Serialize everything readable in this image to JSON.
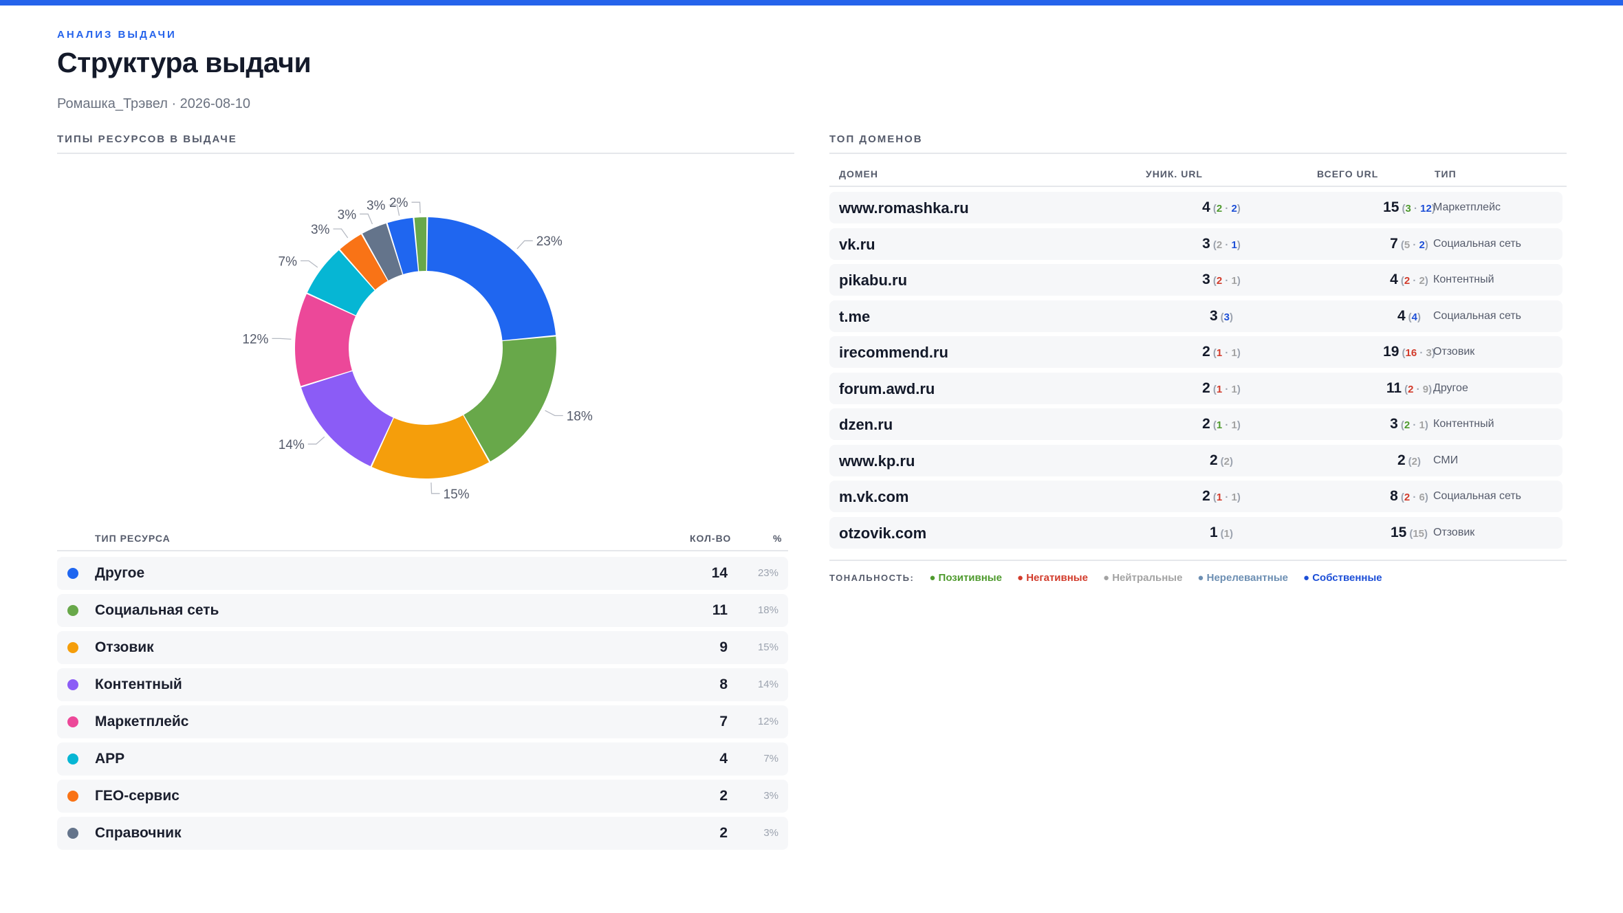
{
  "header": {
    "kicker": "АНАЛИЗ ВЫДАЧИ",
    "title": "Структура выдачи",
    "subtitle": "Ромашка_Трэвел · 2026-08-10"
  },
  "left_section": {
    "title": "ТИПЫ РЕСУРСОВ В ВЫДАЧЕ",
    "table_headers": {
      "type": "ТИП РЕСУРСА",
      "count": "КОЛ-ВО",
      "pct": "%"
    },
    "rows": [
      {
        "name": "Другое",
        "count": "14",
        "pct": "23%",
        "color": "#1f66f0"
      },
      {
        "name": "Социальная сеть",
        "count": "11",
        "pct": "18%",
        "color": "#68a84a"
      },
      {
        "name": "Отзовик",
        "count": "9",
        "pct": "15%",
        "color": "#f59e0b"
      },
      {
        "name": "Контентный",
        "count": "8",
        "pct": "14%",
        "color": "#8b5cf6"
      },
      {
        "name": "Маркетплейс",
        "count": "7",
        "pct": "12%",
        "color": "#ec4899"
      },
      {
        "name": "APP",
        "count": "4",
        "pct": "7%",
        "color": "#06b6d4"
      },
      {
        "name": "ГЕО-сервис",
        "count": "2",
        "pct": "3%",
        "color": "#f97316"
      },
      {
        "name": "Справочник",
        "count": "2",
        "pct": "3%",
        "color": "#64748b"
      }
    ]
  },
  "chart_data": {
    "type": "pie",
    "donut": true,
    "slices": [
      {
        "category": "Другое",
        "value": 14,
        "label": "23%",
        "color": "#1f66f0"
      },
      {
        "category": "Социальная сеть",
        "value": 11,
        "label": "18%",
        "color": "#68a84a"
      },
      {
        "category": "Отзовик",
        "value": 9,
        "label": "15%",
        "color": "#f59e0b"
      },
      {
        "category": "Контентный",
        "value": 8,
        "label": "14%",
        "color": "#8b5cf6"
      },
      {
        "category": "Маркетплейс",
        "value": 7,
        "label": "12%",
        "color": "#ec4899"
      },
      {
        "category": "APP",
        "value": 4,
        "label": "7%",
        "color": "#06b6d4"
      },
      {
        "category": "ГЕО-сервис",
        "value": 2,
        "label": "3%",
        "color": "#f97316"
      },
      {
        "category": "Справочник",
        "value": 2,
        "label": "3%",
        "color": "#64748b"
      },
      {
        "category": "",
        "value": 2,
        "label": "3%",
        "color": "#1f66f0"
      },
      {
        "category": "",
        "value": 1,
        "label": "2%",
        "color": "#68a84a"
      }
    ]
  },
  "right_section": {
    "title": "ТОП ДОМЕНОВ",
    "table_headers": {
      "domain": "ДОМЕН",
      "uniq": "УНИК. URL",
      "total": "ВСЕГО URL",
      "type": "ТИП"
    },
    "rows": [
      {
        "domain": "www.romashka.ru",
        "uniq": "4",
        "uniq_bd": [
          {
            "v": "2",
            "t": "pos"
          },
          {
            "v": "2",
            "t": "own"
          }
        ],
        "total": "15",
        "total_bd": [
          {
            "v": "3",
            "t": "pos"
          },
          {
            "v": "12",
            "t": "own"
          }
        ],
        "type": "Маркетплейс"
      },
      {
        "domain": "vk.ru",
        "uniq": "3",
        "uniq_bd": [
          {
            "v": "2",
            "t": "neu"
          },
          {
            "v": "1",
            "t": "own"
          }
        ],
        "total": "7",
        "total_bd": [
          {
            "v": "5",
            "t": "neu"
          },
          {
            "v": "2",
            "t": "own"
          }
        ],
        "type": "Социальная сеть"
      },
      {
        "domain": "pikabu.ru",
        "uniq": "3",
        "uniq_bd": [
          {
            "v": "2",
            "t": "neg"
          },
          {
            "v": "1",
            "t": "neu"
          }
        ],
        "total": "4",
        "total_bd": [
          {
            "v": "2",
            "t": "neg"
          },
          {
            "v": "2",
            "t": "neu"
          }
        ],
        "type": "Контентный"
      },
      {
        "domain": "t.me",
        "uniq": "3",
        "uniq_bd": [
          {
            "v": "3",
            "t": "own"
          }
        ],
        "total": "4",
        "total_bd": [
          {
            "v": "4",
            "t": "own"
          }
        ],
        "type": "Социальная сеть"
      },
      {
        "domain": "irecommend.ru",
        "uniq": "2",
        "uniq_bd": [
          {
            "v": "1",
            "t": "neg"
          },
          {
            "v": "1",
            "t": "neu"
          }
        ],
        "total": "19",
        "total_bd": [
          {
            "v": "16",
            "t": "neg"
          },
          {
            "v": "3",
            "t": "neu"
          }
        ],
        "type": "Отзовик"
      },
      {
        "domain": "forum.awd.ru",
        "uniq": "2",
        "uniq_bd": [
          {
            "v": "1",
            "t": "neg"
          },
          {
            "v": "1",
            "t": "neu"
          }
        ],
        "total": "11",
        "total_bd": [
          {
            "v": "2",
            "t": "neg"
          },
          {
            "v": "9",
            "t": "neu"
          }
        ],
        "type": "Другое"
      },
      {
        "domain": "dzen.ru",
        "uniq": "2",
        "uniq_bd": [
          {
            "v": "1",
            "t": "pos"
          },
          {
            "v": "1",
            "t": "neu"
          }
        ],
        "total": "3",
        "total_bd": [
          {
            "v": "2",
            "t": "pos"
          },
          {
            "v": "1",
            "t": "neu"
          }
        ],
        "type": "Контентный"
      },
      {
        "domain": "www.kp.ru",
        "uniq": "2",
        "uniq_bd": [
          {
            "v": "2",
            "t": "neu"
          }
        ],
        "total": "2",
        "total_bd": [
          {
            "v": "2",
            "t": "neu"
          }
        ],
        "type": "СМИ"
      },
      {
        "domain": "m.vk.com",
        "uniq": "2",
        "uniq_bd": [
          {
            "v": "1",
            "t": "neg"
          },
          {
            "v": "1",
            "t": "neu"
          }
        ],
        "total": "8",
        "total_bd": [
          {
            "v": "2",
            "t": "neg"
          },
          {
            "v": "6",
            "t": "neu"
          }
        ],
        "type": "Социальная сеть"
      },
      {
        "domain": "otzovik.com",
        "uniq": "1",
        "uniq_bd": [
          {
            "v": "1",
            "t": "neu"
          }
        ],
        "total": "15",
        "total_bd": [
          {
            "v": "15",
            "t": "neu"
          }
        ],
        "type": "Отзовик"
      }
    ],
    "legend": {
      "label": "ТОНАЛЬНОСТЬ:",
      "items": [
        {
          "text": "● Позитивные",
          "cls": "l-pos"
        },
        {
          "text": "● Негативные",
          "cls": "l-neg"
        },
        {
          "text": "● Нейтральные",
          "cls": "l-neu"
        },
        {
          "text": "● Нерелевантные",
          "cls": "l-irr"
        },
        {
          "text": "● Собственные",
          "cls": "l-own"
        }
      ]
    }
  }
}
